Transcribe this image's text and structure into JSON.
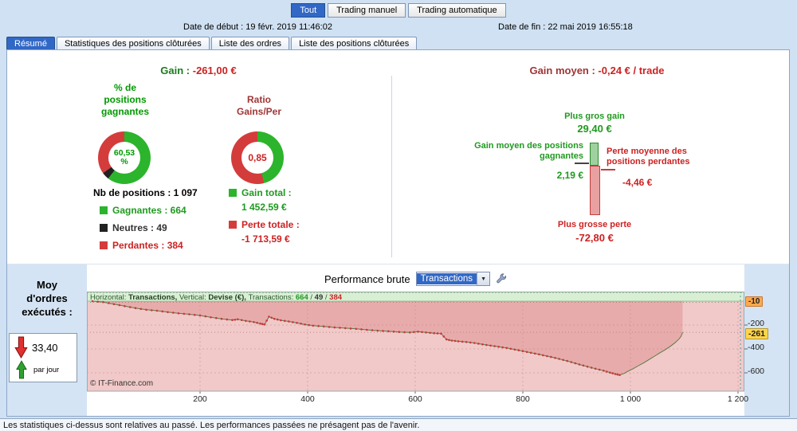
{
  "icons": {
    "dropdown_arrow": "▼"
  },
  "colors": {
    "accent_blue": "#3168c6",
    "green": "#1f9a1f",
    "bright_green": "#009900",
    "red": "#cc2222",
    "dark_red": "#a03535",
    "donut_green": "#2cb42c",
    "donut_dark": "#222222",
    "donut_red": "#d43c3c",
    "last_value_bg": "#ffd54a",
    "cursor_bg": "#ffa94d"
  },
  "top_tabs": {
    "tout": "Tout",
    "manuel": "Trading manuel",
    "auto": "Trading automatique"
  },
  "dates": {
    "start": "Date de début : 19 févr. 2019 11:46:02",
    "end": "Date de fin : 22 mai 2019 16:55:18"
  },
  "section_tabs": {
    "resume": "Résumé",
    "stats": "Statistiques des positions clôturées",
    "ordres": "Liste des ordres",
    "positions": "Liste des positions clôturées"
  },
  "summary": {
    "gain_label": "Gain : ",
    "gain_value": "-261,00 €",
    "pct_title": "% de\npositions\ngagnantes",
    "pct_center": "60,53\n%",
    "ratio_title": "Ratio\nGains/Per",
    "ratio_center": "0,85",
    "nb_positions": "Nb de positions : 1 097",
    "legend_gagnantes": "Gagnantes : 664",
    "legend_neutres": "Neutres : 49",
    "legend_perdantes": "Perdantes : 384",
    "gain_total_label": "Gain total :",
    "gain_total_value": "1 452,59 €",
    "perte_totale_label": "Perte totale :",
    "perte_totale_value": "-1 713,59 €",
    "donut_positions": {
      "segments": [
        {
          "label": "gagnantes",
          "pct": 60.53,
          "color": "#2cb42c"
        },
        {
          "label": "neutres",
          "pct": 4.47,
          "color": "#222222"
        },
        {
          "label": "perdantes",
          "pct": 35.0,
          "color": "#d43c3c"
        }
      ]
    },
    "donut_ratio": {
      "segments": [
        {
          "label": "gains",
          "pct": 45.9,
          "color": "#2cb42c"
        },
        {
          "label": "pertes",
          "pct": 54.1,
          "color": "#d43c3c"
        }
      ]
    }
  },
  "gain_moyen": {
    "label": "Gain moyen : ",
    "value": "-0,24 € / trade",
    "plus_gros_gain_label": "Plus gros gain",
    "plus_gros_gain_value": "29,40 €",
    "plus_gros_gain": 29.4,
    "avg_gain_label": "Gain moyen des positions\ngagnantes",
    "avg_gain_value": "2,19 €",
    "avg_gain": 2.19,
    "avg_loss_label": "Perte moyenne des\npositions perdantes",
    "avg_loss_value": "-4,46 €",
    "avg_loss": -4.46,
    "plus_grosse_perte_label": "Plus grosse perte",
    "plus_grosse_perte_value": "-72,80 €",
    "plus_grosse_perte": -72.8
  },
  "performance": {
    "title": "Performance brute",
    "selector_value": "Transactions",
    "orders_title": "Moy\nd'ordres\nexécutés :",
    "orders_value": "33,40",
    "orders_unit": "par jour",
    "header": {
      "h_label": "Horizontal: ",
      "h_value": "Transactions, ",
      "v_label": "Vertical: ",
      "v_value": "Devise (€), ",
      "t_label": "Transactions: ",
      "wins": "664",
      "sep1": " / ",
      "neutral": "49",
      "sep2": " / ",
      "losses": "384"
    },
    "copyright": "© IT-Finance.com",
    "y_labels": [
      "-200",
      "-400",
      "-600"
    ],
    "last_value_label": "-261",
    "cursor_label": "-10"
  },
  "chart_data": {
    "type": "area",
    "title": "Performance brute",
    "xlabel": "Transactions",
    "ylabel": "Devise (€)",
    "xlim": [
      0,
      1222
    ],
    "ylim": [
      -753,
      80
    ],
    "x_ticks": [
      {
        "v": 200,
        "label": "200"
      },
      {
        "v": 400,
        "label": "400"
      },
      {
        "v": 600,
        "label": "600"
      },
      {
        "v": 800,
        "label": "800"
      },
      {
        "v": 1000,
        "label": "1 000"
      },
      {
        "v": 1200,
        "label": "1 200"
      }
    ],
    "y_gridlines": [
      -200,
      -400,
      -600
    ],
    "zero_level": 0,
    "cursor_value": -10,
    "last_value": -261,
    "marker_max_t": 985,
    "transactions": {
      "wins": 664,
      "neutral": 49,
      "losses": 384
    },
    "series": [
      {
        "name": "equity",
        "points": [
          [
            0,
            0
          ],
          [
            20,
            -8
          ],
          [
            40,
            -25
          ],
          [
            60,
            -42
          ],
          [
            80,
            -58
          ],
          [
            100,
            -72
          ],
          [
            120,
            -80
          ],
          [
            140,
            -92
          ],
          [
            160,
            -102
          ],
          [
            180,
            -110
          ],
          [
            200,
            -120
          ],
          [
            220,
            -135
          ],
          [
            240,
            -148
          ],
          [
            260,
            -158
          ],
          [
            270,
            -152
          ],
          [
            285,
            -165
          ],
          [
            300,
            -175
          ],
          [
            312,
            -188
          ],
          [
            320,
            -195
          ],
          [
            328,
            -130
          ],
          [
            338,
            -148
          ],
          [
            350,
            -160
          ],
          [
            365,
            -170
          ],
          [
            380,
            -182
          ],
          [
            395,
            -195
          ],
          [
            410,
            -205
          ],
          [
            430,
            -212
          ],
          [
            450,
            -220
          ],
          [
            470,
            -226
          ],
          [
            490,
            -232
          ],
          [
            510,
            -240
          ],
          [
            530,
            -247
          ],
          [
            550,
            -252
          ],
          [
            570,
            -258
          ],
          [
            590,
            -262
          ],
          [
            605,
            -255
          ],
          [
            620,
            -262
          ],
          [
            635,
            -268
          ],
          [
            648,
            -272
          ],
          [
            658,
            -320
          ],
          [
            668,
            -330
          ],
          [
            680,
            -336
          ],
          [
            695,
            -342
          ],
          [
            710,
            -350
          ],
          [
            725,
            -362
          ],
          [
            740,
            -372
          ],
          [
            755,
            -382
          ],
          [
            770,
            -392
          ],
          [
            785,
            -405
          ],
          [
            800,
            -418
          ],
          [
            815,
            -432
          ],
          [
            830,
            -445
          ],
          [
            845,
            -460
          ],
          [
            860,
            -475
          ],
          [
            875,
            -492
          ],
          [
            890,
            -510
          ],
          [
            905,
            -530
          ],
          [
            920,
            -548
          ],
          [
            935,
            -565
          ],
          [
            950,
            -582
          ],
          [
            962,
            -598
          ],
          [
            972,
            -610
          ],
          [
            980,
            -618
          ],
          [
            988,
            -605
          ],
          [
            995,
            -588
          ],
          [
            1005,
            -565
          ],
          [
            1015,
            -540
          ],
          [
            1025,
            -515
          ],
          [
            1035,
            -488
          ],
          [
            1045,
            -460
          ],
          [
            1055,
            -432
          ],
          [
            1065,
            -405
          ],
          [
            1075,
            -375
          ],
          [
            1083,
            -348
          ],
          [
            1090,
            -318
          ],
          [
            1094,
            -295
          ],
          [
            1097,
            -261
          ]
        ]
      }
    ]
  },
  "footer": "Les statistiques ci-dessus sont relatives au passé. Les performances passées ne présagent pas de l'avenir."
}
